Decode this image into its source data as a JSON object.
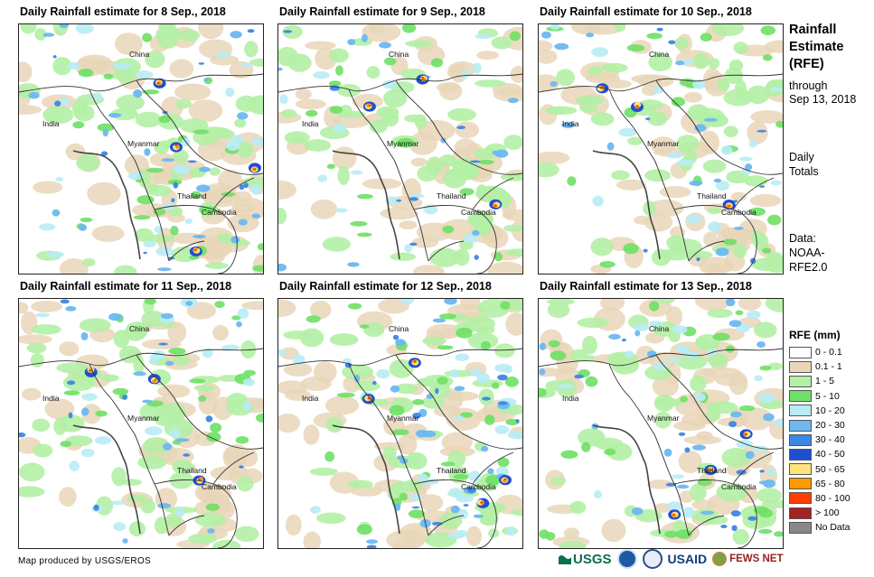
{
  "panels": [
    {
      "title": "Daily Rainfall estimate for 8 Sep., 2018",
      "seed": 8,
      "intensity": 0.9,
      "hot": [
        [
          195,
          250
        ],
        [
          155,
          65
        ],
        [
          175,
          135
        ],
        [
          260,
          160
        ]
      ]
    },
    {
      "title": "Daily Rainfall estimate for 9 Sep., 2018",
      "seed": 9,
      "intensity": 0.55,
      "hot": [
        [
          240,
          200
        ],
        [
          100,
          90
        ],
        [
          160,
          60
        ]
      ]
    },
    {
      "title": "Daily Rainfall estimate for 10 Sep., 2018",
      "seed": 10,
      "intensity": 0.65,
      "hot": [
        [
          70,
          70
        ],
        [
          210,
          200
        ],
        [
          110,
          90
        ]
      ]
    },
    {
      "title": "Daily Rainfall estimate for 11 Sep., 2018",
      "seed": 11,
      "intensity": 0.7,
      "hot": [
        [
          80,
          80
        ],
        [
          150,
          90
        ],
        [
          200,
          200
        ]
      ]
    },
    {
      "title": "Daily Rainfall estimate for 12 Sep., 2018",
      "seed": 12,
      "intensity": 1.0,
      "hot": [
        [
          225,
          225
        ],
        [
          100,
          110
        ],
        [
          250,
          200
        ],
        [
          150,
          70
        ]
      ]
    },
    {
      "title": "Daily Rainfall estimate for 13 Sep., 2018",
      "seed": 13,
      "intensity": 0.85,
      "hot": [
        [
          190,
          190
        ],
        [
          150,
          240
        ],
        [
          230,
          150
        ]
      ]
    }
  ],
  "map_labels": {
    "china": "China",
    "india": "India",
    "myanmar": "Myanmar",
    "thailand": "Thailand",
    "cambodia": "Cambodia"
  },
  "sidebar": {
    "title_line1": "Rainfall",
    "title_line2": "Estimate",
    "title_line3": "(RFE)",
    "through": "through",
    "date": "Sep 13, 2018",
    "daily": "Daily",
    "totals": "Totals",
    "data_label": "Data:",
    "data_src1": "NOAA-",
    "data_src2": "RFE2.0"
  },
  "legend": {
    "title": "RFE (mm)",
    "items": [
      {
        "label": "0 - 0.1",
        "color": "#ffffff"
      },
      {
        "label": "0.1 - 1",
        "color": "#e9d6b8"
      },
      {
        "label": "1 - 5",
        "color": "#b4f0a5"
      },
      {
        "label": "5 - 10",
        "color": "#6ee065"
      },
      {
        "label": "10 - 20",
        "color": "#b8ecf5"
      },
      {
        "label": "20 - 30",
        "color": "#6cb8f2"
      },
      {
        "label": "30 - 40",
        "color": "#3c86e6"
      },
      {
        "label": "40 - 50",
        "color": "#1f4fd0"
      },
      {
        "label": "50 - 65",
        "color": "#ffe37a"
      },
      {
        "label": "65 - 80",
        "color": "#ff9a00"
      },
      {
        "label": "80 - 100",
        "color": "#ff3d00"
      },
      {
        "label": "> 100",
        "color": "#a52222"
      },
      {
        "label": "No Data",
        "color": "#888888"
      }
    ]
  },
  "footer": {
    "credit": "Map produced by USGS/EROS",
    "usgs": "USGS",
    "usaid": "USAID",
    "fews": "FEWS NET"
  }
}
